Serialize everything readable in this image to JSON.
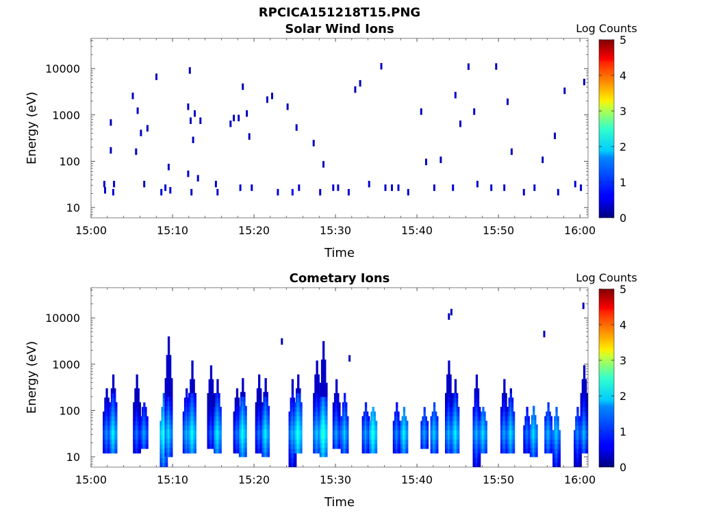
{
  "figure": {
    "title": "RPCICA151218T15.PNG"
  },
  "chart_data": [
    {
      "type": "heatmap",
      "title": "Solar Wind Ions",
      "xlabel": "Time",
      "ylabel": "Energy (eV)",
      "x_range": [
        "15:00",
        "16:01"
      ],
      "y_scale": "log",
      "y_range": [
        6,
        45000
      ],
      "x_ticks": [
        "15:00",
        "15:10",
        "15:20",
        "15:30",
        "15:40",
        "15:50",
        "16:00"
      ],
      "y_ticks": [
        "10",
        "100",
        "1000",
        "10000"
      ],
      "colorbar": {
        "label": "Log Counts",
        "range": [
          0,
          5
        ],
        "ticks": [
          "0",
          "1",
          "2",
          "3",
          "4",
          "5"
        ],
        "colormap": "jet"
      },
      "pixels": [
        {
          "t": 1.5,
          "e": 30,
          "v": 0.4
        },
        {
          "t": 1.6,
          "e": 22,
          "v": 0.4
        },
        {
          "t": 2.3,
          "e": 640,
          "v": 0.3
        },
        {
          "t": 2.3,
          "e": 160,
          "v": 0.3
        },
        {
          "t": 2.6,
          "e": 20,
          "v": 0.4
        },
        {
          "t": 2.7,
          "e": 30,
          "v": 0.4
        },
        {
          "t": 5.0,
          "e": 2400,
          "v": 0.3
        },
        {
          "t": 5.4,
          "e": 150,
          "v": 0.3
        },
        {
          "t": 5.6,
          "e": 1150,
          "v": 0.4
        },
        {
          "t": 6.0,
          "e": 380,
          "v": 0.3
        },
        {
          "t": 6.4,
          "e": 30,
          "v": 0.3
        },
        {
          "t": 6.8,
          "e": 480,
          "v": 0.3
        },
        {
          "t": 7.9,
          "e": 6200,
          "v": 0.3
        },
        {
          "t": 8.5,
          "e": 20,
          "v": 0.4
        },
        {
          "t": 9.0,
          "e": 25,
          "v": 0.4
        },
        {
          "t": 9.4,
          "e": 70,
          "v": 0.3
        },
        {
          "t": 9.6,
          "e": 22,
          "v": 0.4
        },
        {
          "t": 11.8,
          "e": 50,
          "v": 0.4
        },
        {
          "t": 12.0,
          "e": 8500,
          "v": 0.3
        },
        {
          "t": 12.2,
          "e": 20,
          "v": 0.4
        },
        {
          "t": 11.8,
          "e": 1400,
          "v": 0.3
        },
        {
          "t": 12.1,
          "e": 700,
          "v": 0.3
        },
        {
          "t": 12.4,
          "e": 270,
          "v": 0.3
        },
        {
          "t": 12.6,
          "e": 1000,
          "v": 0.3
        },
        {
          "t": 13.0,
          "e": 40,
          "v": 0.4
        },
        {
          "t": 13.3,
          "e": 700,
          "v": 0.3
        },
        {
          "t": 15.2,
          "e": 30,
          "v": 0.4
        },
        {
          "t": 15.4,
          "e": 20,
          "v": 0.4
        },
        {
          "t": 17.0,
          "e": 600,
          "v": 0.3
        },
        {
          "t": 17.4,
          "e": 800,
          "v": 0.3
        },
        {
          "t": 18.0,
          "e": 800,
          "v": 0.3
        },
        {
          "t": 18.2,
          "e": 25,
          "v": 0.4
        },
        {
          "t": 18.5,
          "e": 3800,
          "v": 0.3
        },
        {
          "t": 19.0,
          "e": 1000,
          "v": 0.3
        },
        {
          "t": 19.3,
          "e": 320,
          "v": 0.3
        },
        {
          "t": 19.6,
          "e": 25,
          "v": 0.4
        },
        {
          "t": 21.5,
          "e": 2000,
          "v": 0.3
        },
        {
          "t": 22.1,
          "e": 2400,
          "v": 0.3
        },
        {
          "t": 22.8,
          "e": 20,
          "v": 0.4
        },
        {
          "t": 24.0,
          "e": 1400,
          "v": 0.3
        },
        {
          "t": 24.6,
          "e": 20,
          "v": 0.6
        },
        {
          "t": 25.1,
          "e": 500,
          "v": 0.3
        },
        {
          "t": 25.4,
          "e": 25,
          "v": 0.4
        },
        {
          "t": 27.2,
          "e": 230,
          "v": 0.3
        },
        {
          "t": 28.0,
          "e": 20,
          "v": 0.4
        },
        {
          "t": 28.4,
          "e": 80,
          "v": 0.3
        },
        {
          "t": 29.6,
          "e": 25,
          "v": 0.4
        },
        {
          "t": 30.2,
          "e": 25,
          "v": 0.4
        },
        {
          "t": 31.5,
          "e": 20,
          "v": 0.4
        },
        {
          "t": 32.3,
          "e": 3300,
          "v": 0.3
        },
        {
          "t": 32.9,
          "e": 4500,
          "v": 0.3
        },
        {
          "t": 34.0,
          "e": 30,
          "v": 0.4
        },
        {
          "t": 35.5,
          "e": 10500,
          "v": 0.3
        },
        {
          "t": 36.0,
          "e": 25,
          "v": 0.4
        },
        {
          "t": 36.8,
          "e": 25,
          "v": 0.4
        },
        {
          "t": 37.6,
          "e": 25,
          "v": 0.4
        },
        {
          "t": 38.8,
          "e": 20,
          "v": 0.4
        },
        {
          "t": 40.4,
          "e": 1100,
          "v": 0.3
        },
        {
          "t": 41.0,
          "e": 90,
          "v": 0.3
        },
        {
          "t": 42.0,
          "e": 25,
          "v": 0.4
        },
        {
          "t": 42.8,
          "e": 100,
          "v": 0.3
        },
        {
          "t": 44.3,
          "e": 25,
          "v": 0.4
        },
        {
          "t": 44.6,
          "e": 2500,
          "v": 0.4
        },
        {
          "t": 45.2,
          "e": 600,
          "v": 0.3
        },
        {
          "t": 46.2,
          "e": 10300,
          "v": 0.3
        },
        {
          "t": 46.9,
          "e": 1100,
          "v": 0.3
        },
        {
          "t": 47.3,
          "e": 30,
          "v": 0.4
        },
        {
          "t": 49.0,
          "e": 25,
          "v": 0.4
        },
        {
          "t": 49.6,
          "e": 10400,
          "v": 0.3
        },
        {
          "t": 50.6,
          "e": 25,
          "v": 0.4
        },
        {
          "t": 51.0,
          "e": 1800,
          "v": 0.3
        },
        {
          "t": 51.5,
          "e": 150,
          "v": 0.3
        },
        {
          "t": 53.0,
          "e": 20,
          "v": 0.4
        },
        {
          "t": 54.3,
          "e": 25,
          "v": 0.4
        },
        {
          "t": 55.3,
          "e": 100,
          "v": 0.3
        },
        {
          "t": 56.8,
          "e": 330,
          "v": 0.3
        },
        {
          "t": 57.2,
          "e": 20,
          "v": 0.4
        },
        {
          "t": 58.0,
          "e": 3100,
          "v": 0.3
        },
        {
          "t": 59.3,
          "e": 30,
          "v": 0.4
        },
        {
          "t": 60.0,
          "e": 25,
          "v": 0.4
        },
        {
          "t": 60.4,
          "e": 4800,
          "v": 0.3
        }
      ]
    },
    {
      "type": "heatmap",
      "title": "Cometary Ions",
      "xlabel": "Time",
      "ylabel": "Energy (eV)",
      "x_range": [
        "15:00",
        "16:01"
      ],
      "y_scale": "log",
      "y_range": [
        6,
        45000
      ],
      "x_ticks": [
        "15:00",
        "15:10",
        "15:20",
        "15:30",
        "15:40",
        "15:50",
        "16:00"
      ],
      "y_ticks": [
        "10",
        "100",
        "1000",
        "10000"
      ],
      "colorbar": {
        "label": "Log Counts",
        "range": [
          0,
          5
        ],
        "ticks": [
          "0",
          "1",
          "2",
          "3",
          "4",
          "5"
        ],
        "colormap": "jet"
      },
      "bursts": [
        {
          "t": 1.8,
          "lo": 12,
          "hi": 300,
          "peak": 1.4
        },
        {
          "t": 2.6,
          "lo": 12,
          "hi": 600,
          "peak": 1.9
        },
        {
          "t": 5.5,
          "lo": 12,
          "hi": 520,
          "peak": 1.3
        },
        {
          "t": 6.4,
          "lo": 15,
          "hi": 150,
          "peak": 1.5
        },
        {
          "t": 8.8,
          "lo": 6,
          "hi": 200,
          "peak": 2.1
        },
        {
          "t": 9.4,
          "lo": 10,
          "hi": 3800,
          "peak": 1.8
        },
        {
          "t": 11.6,
          "lo": 12,
          "hi": 300,
          "peak": 1.6
        },
        {
          "t": 12.3,
          "lo": 12,
          "hi": 1000,
          "peak": 2.0
        },
        {
          "t": 14.6,
          "lo": 15,
          "hi": 900,
          "peak": 1.2
        },
        {
          "t": 15.4,
          "lo": 12,
          "hi": 400,
          "peak": 1.9
        },
        {
          "t": 17.8,
          "lo": 12,
          "hi": 300,
          "peak": 1.3
        },
        {
          "t": 18.5,
          "lo": 10,
          "hi": 500,
          "peak": 2.0
        },
        {
          "t": 20.5,
          "lo": 12,
          "hi": 520,
          "peak": 1.3
        },
        {
          "t": 21.3,
          "lo": 10,
          "hi": 500,
          "peak": 1.9
        },
        {
          "t": 24.6,
          "lo": 6,
          "hi": 380,
          "peak": 1.6
        },
        {
          "t": 25.3,
          "lo": 12,
          "hi": 520,
          "peak": 2.1
        },
        {
          "t": 27.6,
          "lo": 12,
          "hi": 1200,
          "peak": 1.7
        },
        {
          "t": 28.4,
          "lo": 10,
          "hi": 2900,
          "peak": 2.2
        },
        {
          "t": 30.0,
          "lo": 15,
          "hi": 400,
          "peak": 1.5
        },
        {
          "t": 31.0,
          "lo": 12,
          "hi": 200,
          "peak": 1.7
        },
        {
          "t": 33.6,
          "lo": 12,
          "hi": 150,
          "peak": 1.5
        },
        {
          "t": 34.5,
          "lo": 12,
          "hi": 120,
          "peak": 2.1
        },
        {
          "t": 37.4,
          "lo": 12,
          "hi": 130,
          "peak": 1.4
        },
        {
          "t": 38.3,
          "lo": 12,
          "hi": 110,
          "peak": 1.9
        },
        {
          "t": 40.8,
          "lo": 15,
          "hi": 100,
          "peak": 1.5
        },
        {
          "t": 42.0,
          "lo": 12,
          "hi": 150,
          "peak": 1.7
        },
        {
          "t": 43.8,
          "lo": 12,
          "hi": 1200,
          "peak": 1.6
        },
        {
          "t": 44.6,
          "lo": 12,
          "hi": 400,
          "peak": 1.9
        },
        {
          "t": 47.2,
          "lo": 6,
          "hi": 600,
          "peak": 1.6
        },
        {
          "t": 48.0,
          "lo": 12,
          "hi": 120,
          "peak": 1.8
        },
        {
          "t": 50.6,
          "lo": 12,
          "hi": 400,
          "peak": 1.5
        },
        {
          "t": 51.4,
          "lo": 12,
          "hi": 300,
          "peak": 1.8
        },
        {
          "t": 53.4,
          "lo": 12,
          "hi": 100,
          "peak": 1.3
        },
        {
          "t": 54.2,
          "lo": 10,
          "hi": 120,
          "peak": 1.8
        },
        {
          "t": 56.0,
          "lo": 12,
          "hi": 150,
          "peak": 1.6
        },
        {
          "t": 57.0,
          "lo": 6,
          "hi": 100,
          "peak": 1.7
        },
        {
          "t": 59.6,
          "lo": 6,
          "hi": 100,
          "peak": 1.4
        },
        {
          "t": 60.4,
          "lo": 12,
          "hi": 900,
          "peak": 1.6
        }
      ],
      "isolated": [
        {
          "t": 43.8,
          "e": 10000,
          "v": 0.3
        },
        {
          "t": 44.1,
          "e": 12500,
          "v": 0.3
        },
        {
          "t": 55.5,
          "e": 4200,
          "v": 0.3
        },
        {
          "t": 60.3,
          "e": 17000,
          "v": 0.3
        },
        {
          "t": 23.3,
          "e": 2900,
          "v": 0.3
        },
        {
          "t": 31.6,
          "e": 1250,
          "v": 0.3
        }
      ]
    }
  ]
}
